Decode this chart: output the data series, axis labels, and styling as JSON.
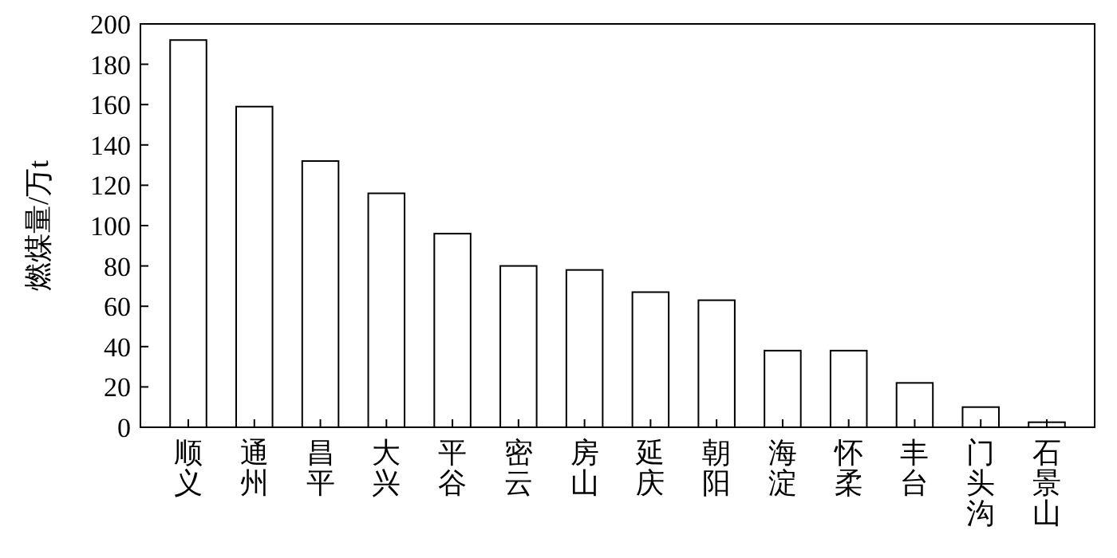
{
  "chart_data": {
    "type": "bar",
    "ylabel": "燃煤量/万t",
    "categories": [
      "顺义",
      "通州",
      "昌平",
      "大兴",
      "平谷",
      "密云",
      "房山",
      "延庆",
      "朝阳",
      "海淀",
      "怀柔",
      "丰台",
      "门头沟",
      "石景山"
    ],
    "values": [
      192,
      159,
      132,
      116,
      96,
      80,
      78,
      67,
      63,
      38,
      38,
      22,
      10,
      2.5
    ],
    "color": "#ffffff",
    "ylim": [
      0,
      200
    ],
    "yticks": [
      0,
      20,
      40,
      60,
      80,
      100,
      120,
      140,
      160,
      180,
      200
    ],
    "grid": false
  }
}
